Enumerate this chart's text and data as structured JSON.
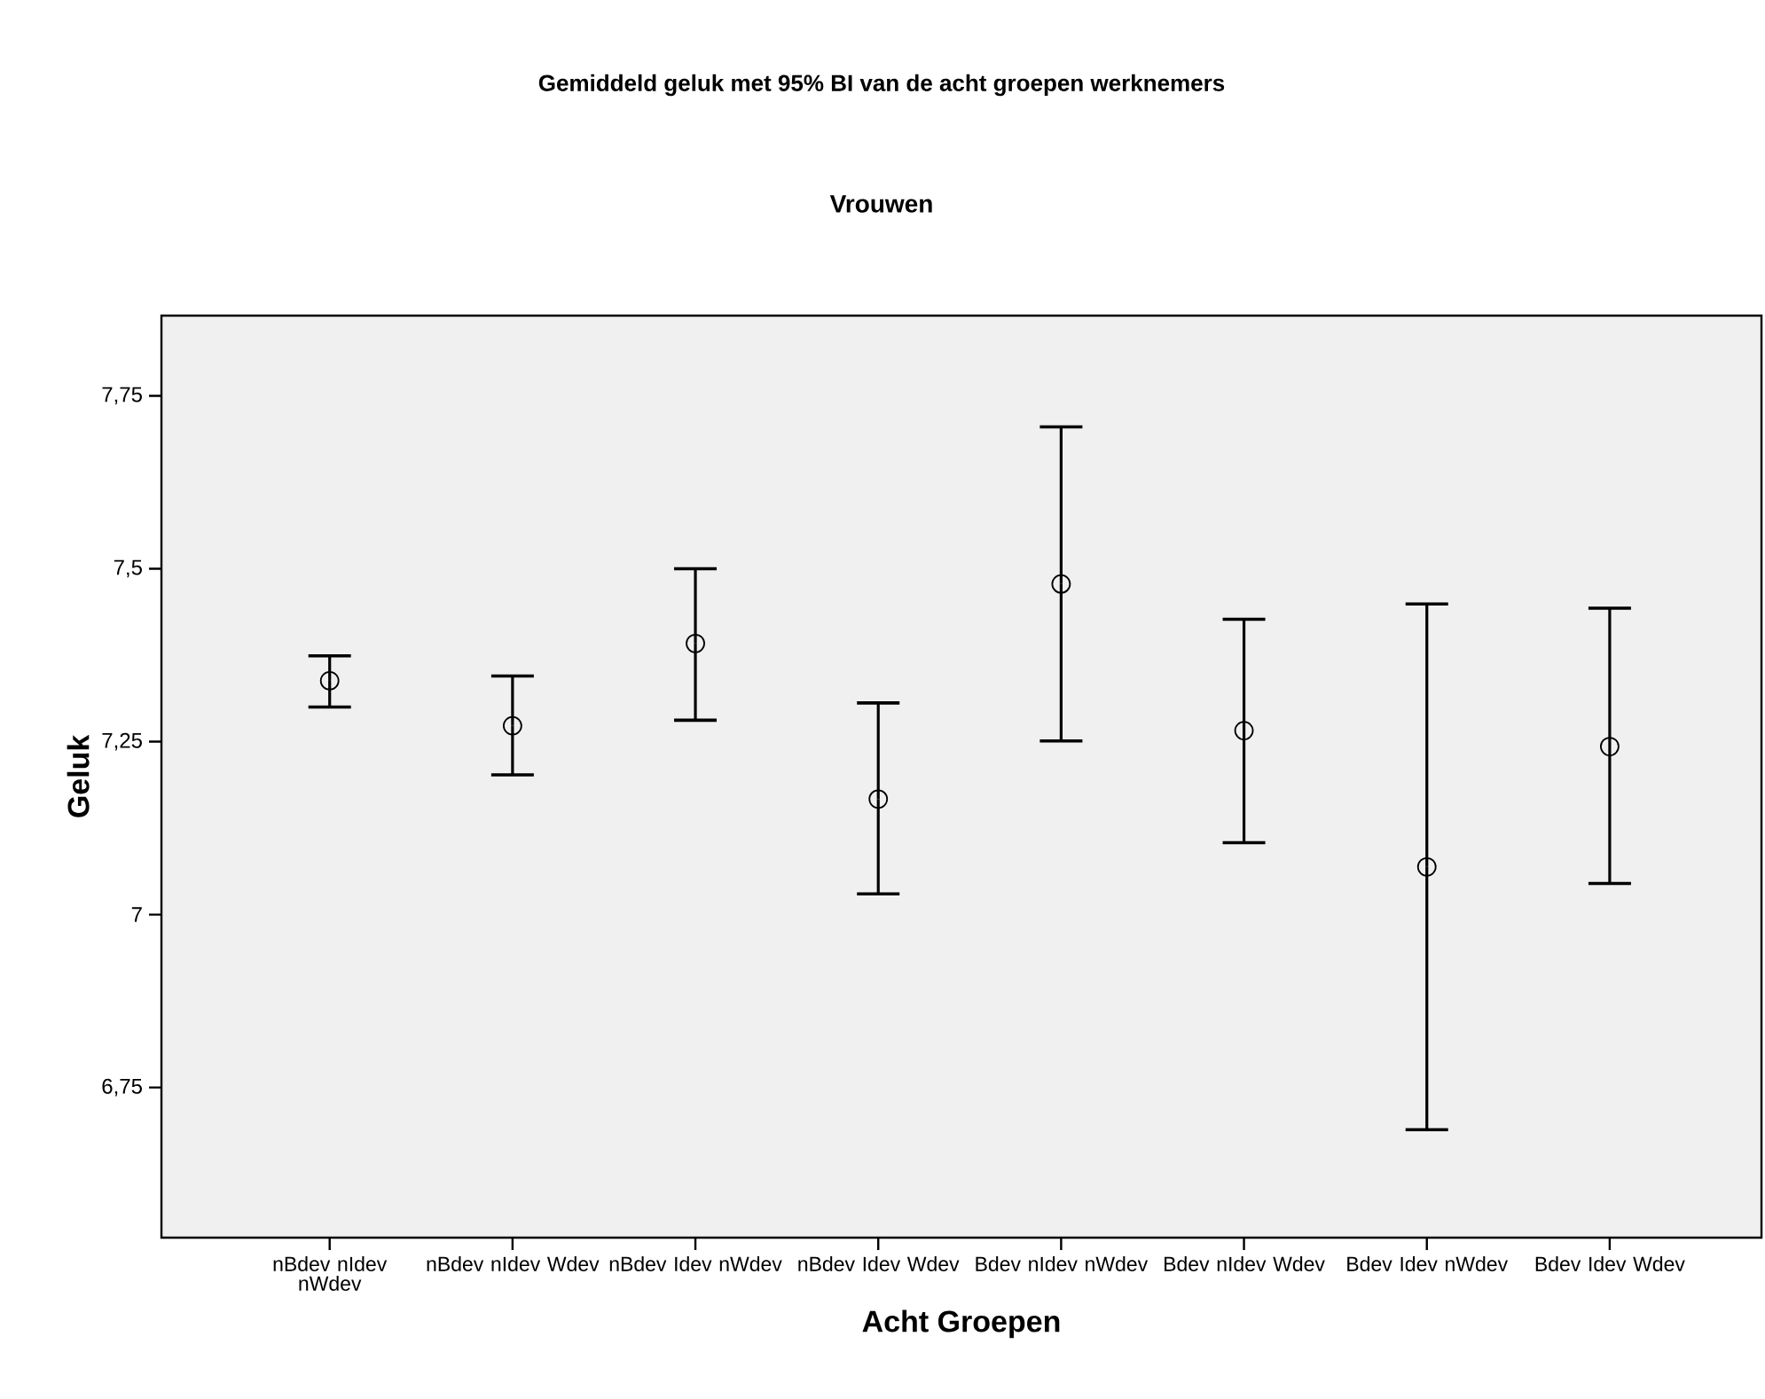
{
  "chart_data": {
    "type": "scatter",
    "title": "Gemiddeld geluk met 95% BI van de acht groepen werknemers",
    "subtitle": "Vrouwen",
    "xlabel": "Acht Groepen",
    "ylabel": "Geluk",
    "categories": [
      "nBdev nIdev nWdev",
      "nBdev nIdev Wdev",
      "nBdev Idev nWdev",
      "nBdev Idev Wdev",
      "Bdev nIdev nWdev",
      "Bdev nIdev Wdev",
      "Bdev Idev nWdev",
      "Bdev Idev Wdev"
    ],
    "series": [
      {
        "color": "#000000",
        "values": [
          7.338,
          7.273,
          7.392,
          7.167,
          7.478,
          7.266,
          7.069,
          7.243
        ],
        "errors": [
          [
            7.3,
            7.374
          ],
          [
            7.202,
            7.345
          ],
          [
            7.281,
            7.5
          ],
          [
            7.03,
            7.306
          ],
          [
            7.251,
            7.705
          ],
          [
            7.104,
            7.427
          ],
          [
            6.689,
            7.449
          ],
          [
            7.045,
            7.443
          ]
        ]
      }
    ],
    "ylim": [
      6.533,
      7.866
    ],
    "yticks": [
      {
        "value": 6.75,
        "label": "6,75"
      },
      {
        "value": 7,
        "label": "7"
      },
      {
        "value": 7.25,
        "label": "7,25"
      },
      {
        "value": 7.5,
        "label": "7,5"
      },
      {
        "value": 7.75,
        "label": "7,75"
      }
    ],
    "marker": "circle"
  }
}
